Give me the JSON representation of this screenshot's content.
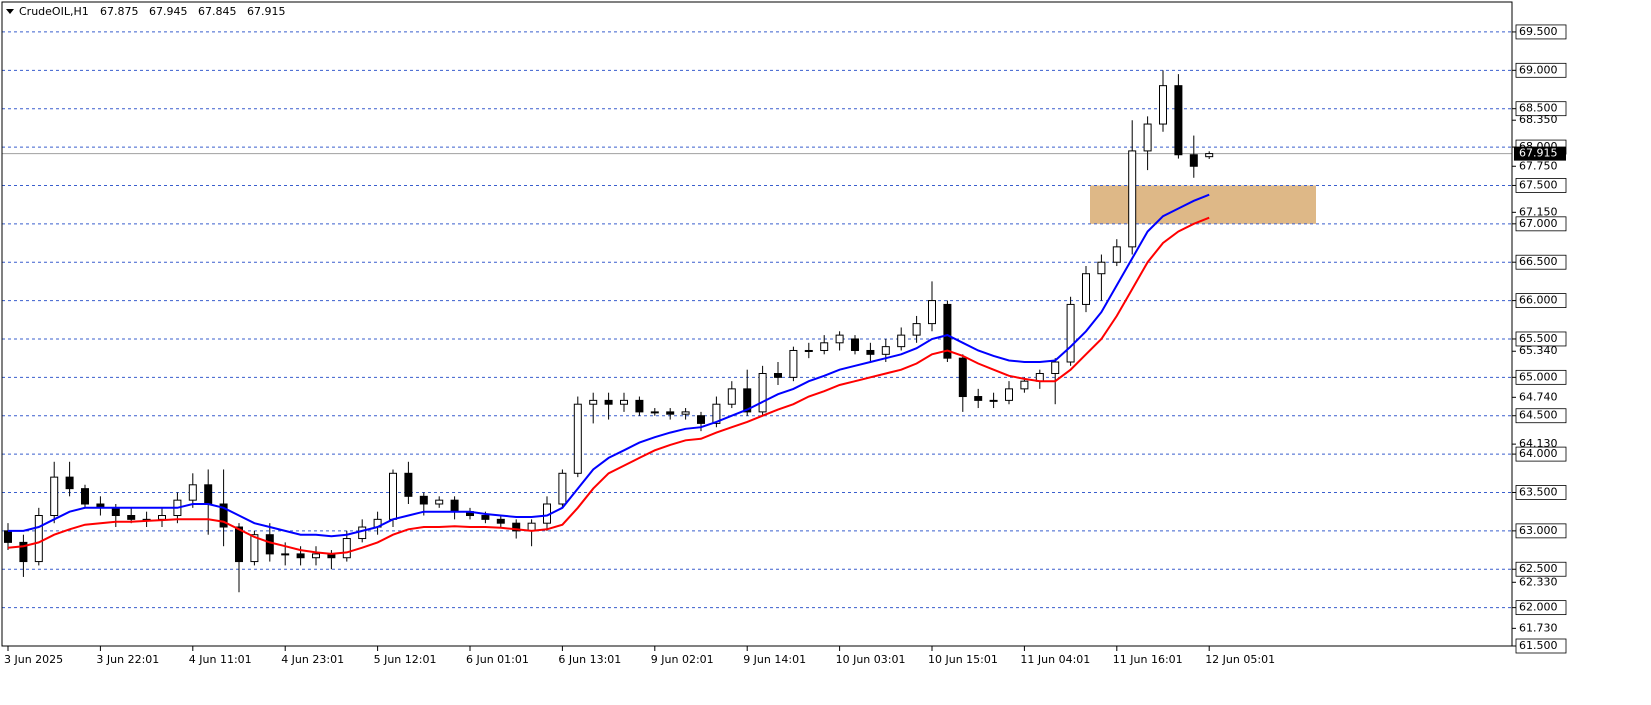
{
  "chart_data": {
    "type": "candlestick",
    "symbol": "CrudeOIL,H1",
    "categories": [
      "3 Jun 2025",
      null,
      null,
      null,
      null,
      null,
      "3 Jun 22:01",
      null,
      null,
      null,
      null,
      null,
      "4 Jun 11:01",
      null,
      null,
      null,
      null,
      null,
      "4 Jun 23:01",
      null,
      null,
      null,
      null,
      null,
      "5 Jun 12:01",
      null,
      null,
      null,
      null,
      null,
      "6 Jun 01:01",
      null,
      null,
      null,
      null,
      null,
      "6 Jun 13:01",
      null,
      null,
      null,
      null,
      null,
      "9 Jun 02:01",
      null,
      null,
      null,
      null,
      null,
      "9 Jun 14:01",
      null,
      null,
      null,
      null,
      null,
      "10 Jun 03:01",
      null,
      null,
      null,
      null,
      null,
      "10 Jun 15:01",
      null,
      null,
      null,
      null,
      null,
      "11 Jun 04:01",
      null,
      null,
      null,
      null,
      null,
      "11 Jun 16:01",
      null,
      null,
      null,
      null,
      null,
      "12 Jun 05:01"
    ],
    "open": [
      63.0,
      62.85,
      62.6,
      63.2,
      63.7,
      63.55,
      63.35,
      63.3,
      63.2,
      63.15,
      63.15,
      63.2,
      63.4,
      63.6,
      63.35,
      63.05,
      62.6,
      62.95,
      62.7,
      62.7,
      62.65,
      62.7,
      62.65,
      62.9,
      63.05,
      63.15,
      63.75,
      63.45,
      63.35,
      63.4,
      63.25,
      63.2,
      63.15,
      63.1,
      63.0,
      63.1,
      63.35,
      63.75,
      64.65,
      64.7,
      64.65,
      64.7,
      64.55,
      64.55,
      64.52,
      64.5,
      64.4,
      64.65,
      64.85,
      64.55,
      65.05,
      65.0,
      65.35,
      65.35,
      65.45,
      65.5,
      65.35,
      65.3,
      65.4,
      65.55,
      65.7,
      65.95,
      65.25,
      64.75,
      64.7,
      64.7,
      64.85,
      64.95,
      65.05,
      65.2,
      65.95,
      66.35,
      66.5,
      66.7,
      67.95,
      68.3,
      68.8,
      67.9,
      67.875
    ],
    "high": [
      63.1,
      62.95,
      63.3,
      63.9,
      63.9,
      63.6,
      63.45,
      63.35,
      63.3,
      63.25,
      63.3,
      63.5,
      63.75,
      63.8,
      63.8,
      63.1,
      63.0,
      63.1,
      62.85,
      62.8,
      62.8,
      62.75,
      63.0,
      63.15,
      63.25,
      63.8,
      63.9,
      63.5,
      63.45,
      63.45,
      63.3,
      63.25,
      63.2,
      63.15,
      63.15,
      63.45,
      63.8,
      64.75,
      64.8,
      64.8,
      64.8,
      64.75,
      64.6,
      64.6,
      64.6,
      64.55,
      64.75,
      64.95,
      65.1,
      65.15,
      65.2,
      65.4,
      65.45,
      65.55,
      65.6,
      65.55,
      65.45,
      65.5,
      65.65,
      65.8,
      66.25,
      66.0,
      65.3,
      64.85,
      64.8,
      64.95,
      65.0,
      65.1,
      65.25,
      66.05,
      66.45,
      66.6,
      66.8,
      68.35,
      68.4,
      69.0,
      68.95,
      68.15,
      67.945
    ],
    "low": [
      62.75,
      62.4,
      62.55,
      63.1,
      63.45,
      63.3,
      63.2,
      63.05,
      63.1,
      63.05,
      63.05,
      63.1,
      63.3,
      62.95,
      62.8,
      62.2,
      62.55,
      62.6,
      62.55,
      62.55,
      62.55,
      62.5,
      62.6,
      62.85,
      62.95,
      63.05,
      63.35,
      63.2,
      63.3,
      63.15,
      63.15,
      63.1,
      63.05,
      62.9,
      62.8,
      63.0,
      63.3,
      63.7,
      64.4,
      64.45,
      64.55,
      64.5,
      64.5,
      64.45,
      64.45,
      64.3,
      64.35,
      64.6,
      64.5,
      64.5,
      64.9,
      64.95,
      65.25,
      65.3,
      65.35,
      65.3,
      65.2,
      65.2,
      65.35,
      65.45,
      65.6,
      65.2,
      64.55,
      64.6,
      64.6,
      64.65,
      64.8,
      64.85,
      64.65,
      65.15,
      65.85,
      66.0,
      66.45,
      66.6,
      67.7,
      68.2,
      67.85,
      67.6,
      67.845
    ],
    "close": [
      62.85,
      62.6,
      63.2,
      63.7,
      63.55,
      63.35,
      63.3,
      63.2,
      63.15,
      63.15,
      63.2,
      63.4,
      63.6,
      63.35,
      63.05,
      62.6,
      62.95,
      62.7,
      62.7,
      62.65,
      62.7,
      62.65,
      62.9,
      63.05,
      63.15,
      63.75,
      63.45,
      63.35,
      63.4,
      63.25,
      63.2,
      63.15,
      63.1,
      63.0,
      63.1,
      63.35,
      63.75,
      64.65,
      64.7,
      64.65,
      64.7,
      64.55,
      64.55,
      64.52,
      64.55,
      64.4,
      64.65,
      64.85,
      64.55,
      65.05,
      65.0,
      65.35,
      65.35,
      65.45,
      65.55,
      65.35,
      65.3,
      65.4,
      65.55,
      65.7,
      66.0,
      65.25,
      64.75,
      64.7,
      64.7,
      64.85,
      64.95,
      65.05,
      65.2,
      65.95,
      66.35,
      66.5,
      66.7,
      67.95,
      68.3,
      68.8,
      67.9,
      67.75,
      67.915
    ],
    "up_color": "#ffffff",
    "down_color": "#000000",
    "lines": [
      {
        "color": "#0000ff",
        "values": [
          63.0,
          63.0,
          63.05,
          63.15,
          63.25,
          63.3,
          63.3,
          63.3,
          63.3,
          63.3,
          63.3,
          63.3,
          63.35,
          63.35,
          63.3,
          63.2,
          63.1,
          63.05,
          63.0,
          62.95,
          62.95,
          62.93,
          62.95,
          63.0,
          63.05,
          63.15,
          63.2,
          63.25,
          63.25,
          63.25,
          63.25,
          63.22,
          63.2,
          63.18,
          63.18,
          63.2,
          63.3,
          63.55,
          63.8,
          63.95,
          64.05,
          64.15,
          64.22,
          64.28,
          64.33,
          64.35,
          64.42,
          64.5,
          64.58,
          64.68,
          64.78,
          64.85,
          64.95,
          65.02,
          65.1,
          65.15,
          65.2,
          65.25,
          65.3,
          65.38,
          65.5,
          65.55,
          65.45,
          65.35,
          65.28,
          65.22,
          65.2,
          65.2,
          65.22,
          65.4,
          65.6,
          65.85,
          66.2,
          66.55,
          66.9,
          67.1,
          67.2,
          67.3,
          67.38
        ]
      },
      {
        "color": "#ff0000",
        "values": [
          62.78,
          62.8,
          62.85,
          62.95,
          63.02,
          63.08,
          63.1,
          63.12,
          63.12,
          63.13,
          63.14,
          63.15,
          63.15,
          63.15,
          63.12,
          63.02,
          62.92,
          62.85,
          62.8,
          62.75,
          62.72,
          62.7,
          62.72,
          62.78,
          62.85,
          62.95,
          63.02,
          63.05,
          63.05,
          63.06,
          63.05,
          63.05,
          63.04,
          63.02,
          63.0,
          63.02,
          63.08,
          63.3,
          63.55,
          63.75,
          63.85,
          63.95,
          64.05,
          64.12,
          64.18,
          64.2,
          64.28,
          64.35,
          64.42,
          64.5,
          64.58,
          64.65,
          64.75,
          64.82,
          64.9,
          64.95,
          65.0,
          65.05,
          65.1,
          65.18,
          65.3,
          65.35,
          65.28,
          65.18,
          65.1,
          65.02,
          64.98,
          64.95,
          64.95,
          65.1,
          65.3,
          65.5,
          65.8,
          66.15,
          66.5,
          66.75,
          66.9,
          67.0,
          67.08
        ]
      }
    ],
    "zone": {
      "low": 67.0,
      "high": 67.5,
      "color": "#deb887"
    },
    "ylim": [
      61.5,
      69.89
    ],
    "yticks": [
      {
        "value": 61.5,
        "label": "61.500"
      },
      {
        "value": 62,
        "label": "62.000"
      },
      {
        "value": 62.5,
        "label": "62.500"
      },
      {
        "value": 63,
        "label": "63.000"
      },
      {
        "value": 63.5,
        "label": "63.500"
      },
      {
        "value": 64,
        "label": "64.000"
      },
      {
        "value": 64.5,
        "label": "64.500"
      },
      {
        "value": 65,
        "label": "65.000"
      },
      {
        "value": 65.5,
        "label": "65.500"
      },
      {
        "value": 66,
        "label": "66.000"
      },
      {
        "value": 66.5,
        "label": "66.500"
      },
      {
        "value": 67,
        "label": "67.000"
      },
      {
        "value": 67.5,
        "label": "67.500"
      },
      {
        "value": 68,
        "label": "68.000"
      },
      {
        "value": 68.5,
        "label": "68.500"
      },
      {
        "value": 69,
        "label": "69.000"
      },
      {
        "value": 69.5,
        "label": "69.500"
      }
    ],
    "yticks_extra": [
      {
        "value": 61.73,
        "label": "61.730"
      },
      {
        "value": 62.33,
        "label": "62.330"
      },
      {
        "value": 64.13,
        "label": "64.130"
      },
      {
        "value": 64.74,
        "label": "64.740"
      },
      {
        "value": 65.34,
        "label": "65.340"
      },
      {
        "value": 67.15,
        "label": "67.150"
      },
      {
        "value": 67.75,
        "label": "67.750"
      },
      {
        "value": 68.35,
        "label": "68.350"
      }
    ],
    "grid": true,
    "grid_color": "#3a5fcd"
  }
}
